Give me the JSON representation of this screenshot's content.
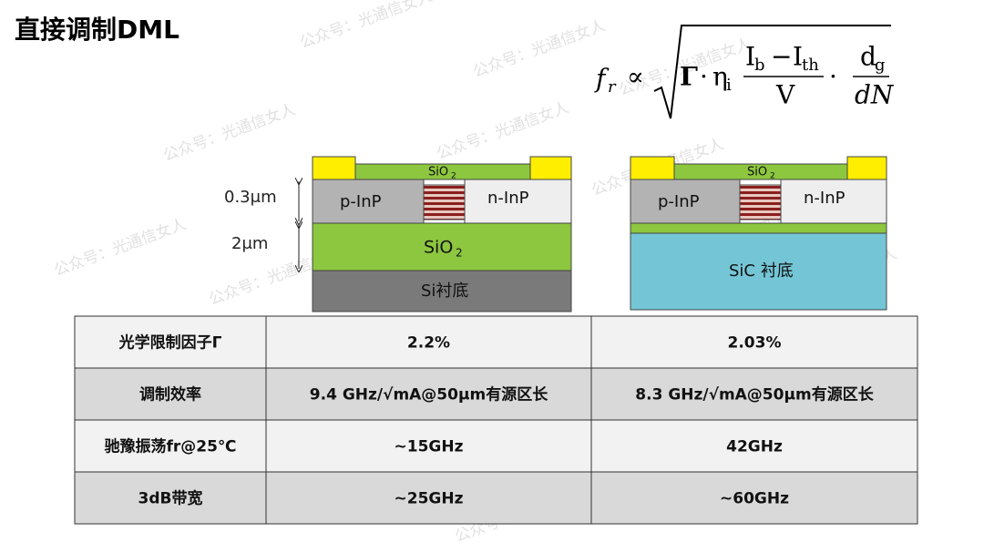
{
  "header": {
    "title": "直接调制DML"
  },
  "formula": {
    "lhs": "f",
    "lhs_sub": "r",
    "prop": "∝",
    "gamma": "Γ",
    "dot": "·",
    "eta": "η",
    "eta_sub": "i",
    "num_a": "I",
    "num_a_sub": "b",
    "minus": "−",
    "num_b": "I",
    "num_b_sub": "th",
    "den": "V",
    "dg": "d",
    "dg_sub": "g",
    "dn": "dN"
  },
  "watermark": "公众号：光通信女人",
  "diagrams": {
    "thickness_top": "0.3μm",
    "thickness_bottom": "2μm",
    "left": {
      "cap": "SiO",
      "cap_sub": "2",
      "p": "p-InP",
      "n": "n-InP",
      "box": "SiO",
      "box_sub": "2",
      "substrate": "Si衬底"
    },
    "right": {
      "cap": "SiO",
      "cap_sub": "2",
      "p": "p-InP",
      "n": "n-InP",
      "substrate": "SiC 衬底"
    }
  },
  "table": {
    "rows": [
      [
        "光学限制因子Γ",
        "2.2%",
        "2.03%"
      ],
      [
        "调制效率",
        "9.4 GHz/√mA@50μm有源区长",
        "8.3 GHz/√mA@50μm有源区长"
      ],
      [
        "驰豫振荡fr@25℃",
        "~15GHz",
        "42GHz"
      ],
      [
        "3dB带宽",
        "~25GHz",
        "~60GHz"
      ]
    ]
  }
}
